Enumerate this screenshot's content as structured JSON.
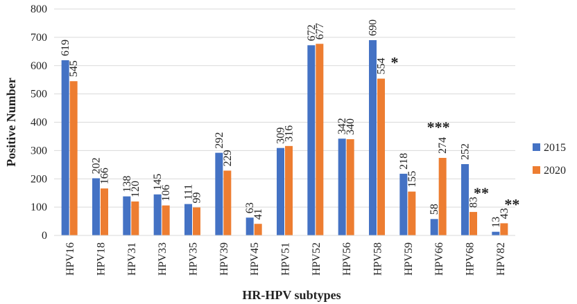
{
  "chart_data": {
    "type": "bar",
    "xlabel": "HR-HPV subtypes",
    "ylabel": "Positive Number",
    "ylim": [
      0,
      800
    ],
    "yticks": [
      0,
      100,
      200,
      300,
      400,
      500,
      600,
      700,
      800
    ],
    "grid": true,
    "legend_position": "right",
    "categories": [
      "HPV16",
      "HPV18",
      "HPV31",
      "HPV33",
      "HPV35",
      "HPV39",
      "HPV45",
      "HPV51",
      "HPV52",
      "HPV56",
      "HPV58",
      "HPV59",
      "HPV66",
      "HPV68",
      "HPV82"
    ],
    "series": [
      {
        "name": "2015",
        "color": "#4472C4",
        "values": [
          619,
          202,
          138,
          145,
          111,
          292,
          63,
          309,
          672,
          342,
          690,
          218,
          58,
          252,
          13
        ]
      },
      {
        "name": "2020",
        "color": "#ED7D31",
        "values": [
          545,
          166,
          120,
          106,
          99,
          229,
          41,
          316,
          677,
          340,
          554,
          155,
          274,
          83,
          43
        ]
      }
    ],
    "significance": [
      "",
      "",
      "",
      "",
      "",
      "",
      "",
      "",
      "",
      "",
      "*",
      "",
      "***",
      "**",
      "**"
    ]
  }
}
